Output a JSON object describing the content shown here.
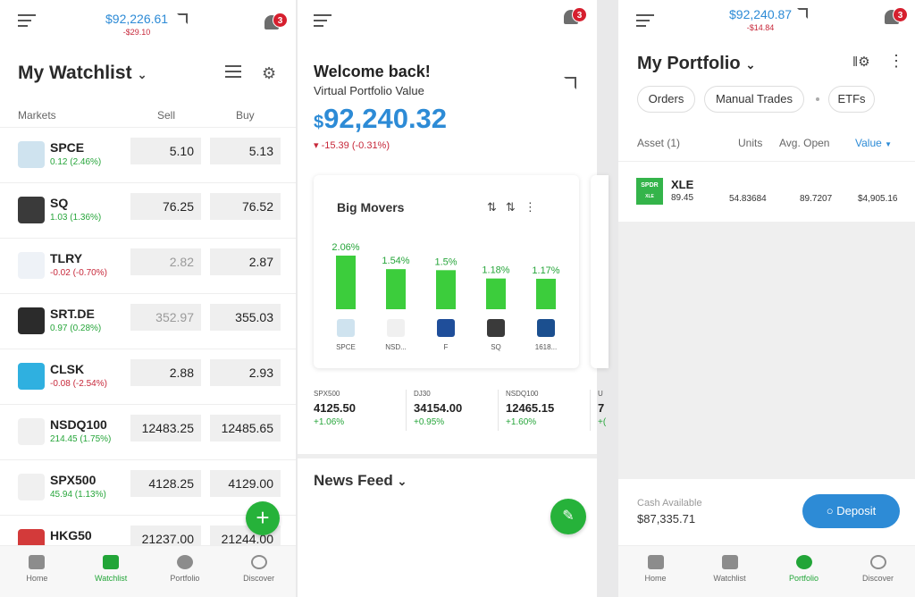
{
  "watchlist": {
    "header_value": "$92,226.61",
    "header_change": "-$29.10",
    "badge": "3",
    "title": "My Watchlist",
    "col_markets": "Markets",
    "col_sell": "Sell",
    "col_buy": "Buy",
    "rows": [
      {
        "symbol": "SPCE",
        "change": "0.12 (2.46%)",
        "dir": "up",
        "sell": "5.10",
        "buy": "5.13",
        "logo_color": "#cfe3ef",
        "logo_icon": "spce-icon"
      },
      {
        "symbol": "SQ",
        "change": "1.03 (1.36%)",
        "dir": "up",
        "sell": "76.25",
        "buy": "76.52",
        "logo_color": "#3a3a3a",
        "logo_icon": "square-icon"
      },
      {
        "symbol": "TLRY",
        "change": "-0.02 (-0.70%)",
        "dir": "down",
        "sell": "2.82",
        "buy": "2.87",
        "logo_color": "#eef2f7",
        "logo_icon": "tilray-icon",
        "sell_muted": true
      },
      {
        "symbol": "SRT.DE",
        "change": "0.97 (0.28%)",
        "dir": "up",
        "sell": "352.97",
        "buy": "355.03",
        "logo_color": "#2b2b2b",
        "logo_icon": "sartorius-icon",
        "sell_muted": true
      },
      {
        "symbol": "CLSK",
        "change": "-0.08 (-2.54%)",
        "dir": "down",
        "sell": "2.88",
        "buy": "2.93",
        "logo_color": "#2fb0e0",
        "logo_icon": "cleanspark-icon"
      },
      {
        "symbol": "NSDQ100",
        "change": "214.45 (1.75%)",
        "dir": "up",
        "sell": "12483.25",
        "buy": "12485.65",
        "logo_color": "#f0f0f0",
        "logo_icon": "usa-flag-icon"
      },
      {
        "symbol": "SPX500",
        "change": "45.94 (1.13%)",
        "dir": "up",
        "sell": "4128.25",
        "buy": "4129.00",
        "logo_color": "#f0f0f0",
        "logo_icon": "usa-flag-icon"
      },
      {
        "symbol": "HKG50",
        "change": "",
        "dir": "up",
        "sell": "21237.00",
        "buy": "21244.00",
        "logo_color": "#d33a3a",
        "logo_icon": "hk-flag-icon"
      }
    ]
  },
  "home": {
    "badge": "3",
    "welcome": "Welcome back!",
    "subtitle": "Virtual Portfolio Value",
    "currency": "$",
    "value": "92,240.32",
    "change": "-15.39 (-0.31%)",
    "big_movers_title": "Big Movers",
    "movers": [
      {
        "pct": "2.06%",
        "value": 2.06,
        "label": "SPCE",
        "logo_color": "#cfe3ef"
      },
      {
        "pct": "1.54%",
        "value": 1.54,
        "label": "NSD...",
        "logo_color": "#f0f0f0"
      },
      {
        "pct": "1.5%",
        "value": 1.5,
        "label": "F",
        "logo_color": "#1f4e9a"
      },
      {
        "pct": "1.18%",
        "value": 1.18,
        "label": "SQ",
        "logo_color": "#3a3a3a"
      },
      {
        "pct": "1.17%",
        "value": 1.17,
        "label": "1618...",
        "logo_color": "#1b4f8f"
      }
    ],
    "indices": [
      {
        "name": "SPX500",
        "value": "4125.50",
        "change": "+1.06%"
      },
      {
        "name": "DJ30",
        "value": "34154.00",
        "change": "+0.95%"
      },
      {
        "name": "NSDQ100",
        "value": "12465.15",
        "change": "+1.60%"
      },
      {
        "name": "U",
        "value": "7",
        "change": "+("
      }
    ],
    "news_title": "News Feed"
  },
  "portfolio": {
    "header_value": "$92,240.87",
    "header_change": "-$14.84",
    "badge": "3",
    "title": "My Portfolio",
    "pills": [
      "Orders",
      "Manual Trades",
      "ETFs"
    ],
    "col_asset": "Asset (1)",
    "col_units": "Units",
    "col_avg": "Avg. Open",
    "col_value": "Value",
    "position": {
      "symbol": "XLE",
      "price": "89.45",
      "units": "54.83684",
      "avg": "89.7207",
      "value": "$4,905.16",
      "logo_top": "SPDR",
      "logo_bottom": "XLE"
    },
    "cash_label": "Cash Available",
    "cash_value": "$87,335.71",
    "deposit": "Deposit"
  },
  "tabs": [
    {
      "label": "Home",
      "icon": "home-icon"
    },
    {
      "label": "Watchlist",
      "icon": "watchlist-icon"
    },
    {
      "label": "Portfolio",
      "icon": "portfolio-icon"
    },
    {
      "label": "Discover",
      "icon": "discover-icon"
    }
  ],
  "colors": {
    "accent_green": "#26b23a",
    "accent_blue": "#2d8bd6",
    "negative": "#c7283a"
  }
}
